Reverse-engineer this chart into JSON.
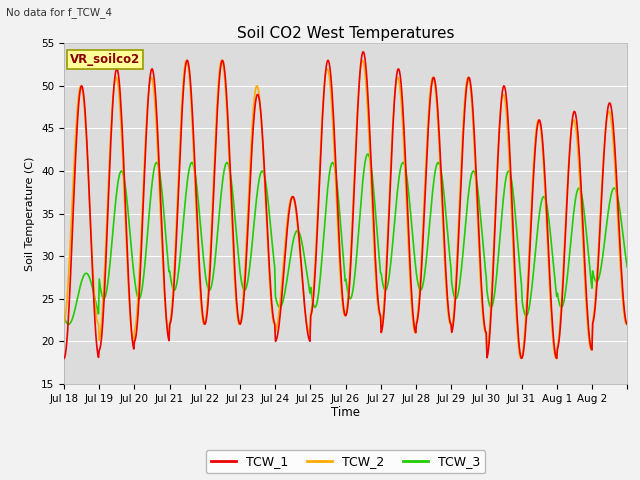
{
  "title": "Soil CO2 West Temperatures",
  "top_left_text": "No data for f_TCW_4",
  "legend_box_label": "VR_soilco2",
  "xlabel": "Time",
  "ylabel": "Soil Temperature (C)",
  "ylim": [
    15,
    55
  ],
  "fig_bg": "#f2f2f2",
  "plot_bg": "#dcdcdc",
  "series": {
    "TCW_1": {
      "color": "#ee0000",
      "lw": 1.2
    },
    "TCW_2": {
      "color": "#ffaa00",
      "lw": 1.2
    },
    "TCW_3": {
      "color": "#22cc00",
      "lw": 1.2
    }
  },
  "xtick_labels": [
    "Jul 18",
    "Jul 19",
    "Jul 20",
    "Jul 21",
    "Jul 22",
    "Jul 23",
    "Jul 24",
    "Jul 25",
    "Jul 26",
    "Jul 27",
    "Jul 28",
    "Jul 29",
    "Jul 30",
    "Jul 31",
    "Aug 1",
    "Aug 2"
  ],
  "ytick_values": [
    15,
    20,
    25,
    30,
    35,
    40,
    45,
    50,
    55
  ],
  "n_days": 16,
  "day_maxes_tcw1": [
    50,
    52,
    52,
    53,
    53,
    49,
    37,
    53,
    54,
    52,
    51,
    51,
    50,
    46,
    47,
    48
  ],
  "day_mins_tcw1": [
    18,
    19,
    20,
    22,
    22,
    22,
    20,
    23,
    23,
    21,
    22,
    21,
    18,
    18,
    19,
    22
  ],
  "day_maxes_tcw2": [
    50,
    51,
    51,
    53,
    53,
    50,
    37,
    52,
    53,
    51,
    51,
    51,
    49,
    46,
    46,
    47
  ],
  "day_mins_tcw2": [
    22,
    20,
    21,
    22,
    22,
    22,
    21,
    23,
    23,
    21,
    22,
    21,
    18,
    18,
    19,
    22
  ],
  "day_maxes_tcw3": [
    28,
    40,
    41,
    41,
    41,
    40,
    33,
    41,
    42,
    41,
    41,
    40,
    40,
    37,
    38,
    38
  ],
  "day_mins_tcw3": [
    22,
    25,
    25,
    26,
    26,
    26,
    24,
    24,
    25,
    26,
    26,
    25,
    24,
    23,
    24,
    27
  ],
  "phase_tcw12": 0.25,
  "phase_tcw3": 0.38
}
